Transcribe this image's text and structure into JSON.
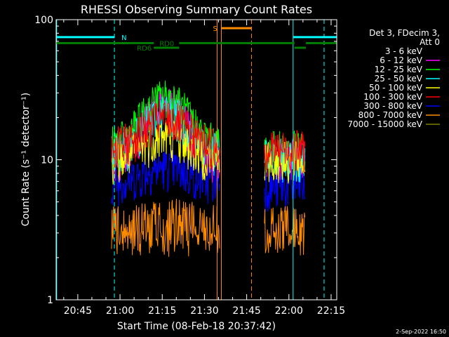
{
  "chart_data": {
    "type": "line",
    "title": "RHESSI Observing Summary Count Rates",
    "xlabel": "Start Time (08-Feb-18 20:37:42)",
    "ylabel": "Count Rate (s⁻¹ detector⁻¹)",
    "yscale": "log",
    "ylim": [
      1,
      100
    ],
    "xlim_minutes_from_2045": [
      -7.7,
      92.0
    ],
    "x_ticks": [
      {
        "minutes": 0,
        "label": "20:45"
      },
      {
        "minutes": 15,
        "label": "21:00"
      },
      {
        "minutes": 30,
        "label": "21:15"
      },
      {
        "minutes": 45,
        "label": "21:30"
      },
      {
        "minutes": 60,
        "label": "21:45"
      },
      {
        "minutes": 75,
        "label": "22:00"
      },
      {
        "minutes": 90,
        "label": "22:15"
      }
    ],
    "y_ticks": [
      {
        "value": 1,
        "label": "1"
      },
      {
        "value": 10,
        "label": "10"
      },
      {
        "value": 100,
        "label": "100"
      }
    ],
    "legend_header": [
      "Det 3, FDecim 3,",
      "Att 0"
    ],
    "legend_position": "right",
    "series": [
      {
        "name": "3 - 6 keV",
        "color": "#000000",
        "base": [
          10.5,
          13.5,
          11.5
        ]
      },
      {
        "name": "6 - 12 keV",
        "color": "#ff00ff",
        "base": [
          9.5,
          24,
          11
        ]
      },
      {
        "name": "12 - 25 keV",
        "color": "#00ff00",
        "base": [
          12.5,
          28,
          12
        ]
      },
      {
        "name": "25 - 50 keV",
        "color": "#00ffff",
        "base": [
          11,
          22,
          10.5
        ]
      },
      {
        "name": "50 - 100 keV",
        "color": "#ffff00",
        "base": [
          10,
          15,
          10
        ]
      },
      {
        "name": "100 - 300 keV",
        "color": "#ff0000",
        "base": [
          12.5,
          20,
          12
        ]
      },
      {
        "name": "300 - 800 keV",
        "color": "#0000ff",
        "base": [
          7,
          9,
          6.5
        ]
      },
      {
        "name": "800 - 7000 keV",
        "color": "#ff8c00",
        "base": [
          3.5,
          4,
          3.5
        ]
      },
      {
        "name": "7000 - 15000 keV",
        "color": "#808000",
        "base": [
          13,
          14,
          12
        ]
      }
    ],
    "data_segments": [
      [
        12.0,
        50.5
      ],
      [
        66.3,
        80.8
      ]
    ],
    "dashed_vlines": [
      {
        "minutes": 13.0,
        "color": "#00ffff"
      },
      {
        "minutes": 61.7,
        "color": "#ff8c00"
      },
      {
        "minutes": 87.5,
        "color": "#00ffff"
      }
    ],
    "solid_vlines": [
      {
        "minutes": -7.5,
        "color": "#00ffff"
      },
      {
        "minutes": 49.5,
        "color": "#ff8c00"
      },
      {
        "minutes": 51.0,
        "color": "#ff8c00"
      },
      {
        "minutes": 76.5,
        "color": "#00ffff"
      }
    ],
    "flag_bars": [
      {
        "label": "N",
        "color": "#00ffff",
        "y": 75,
        "segments": [
          [
            -7.7,
            13.0
          ],
          [
            76.5,
            92.0
          ]
        ],
        "label_at": 15.5
      },
      {
        "label": "S",
        "color": "#ff8c00",
        "y": 87,
        "segments": [
          [
            51.0,
            61.7
          ]
        ],
        "label_at": 48.0
      },
      {
        "label": "RD0",
        "color": "#008000",
        "y": 68,
        "segments": [
          [
            -7.7,
            27.0
          ],
          [
            36.0,
            77.0
          ],
          [
            81.0,
            92.0
          ]
        ],
        "label_at": 29.0
      },
      {
        "label": "RD6",
        "color": "#008000",
        "y": 63,
        "segments": [
          [
            27.0,
            36.0
          ],
          [
            77.0,
            81.0
          ]
        ],
        "label_at": 21.0
      }
    ]
  },
  "footer_date": "2-Sep-2022 16:50"
}
